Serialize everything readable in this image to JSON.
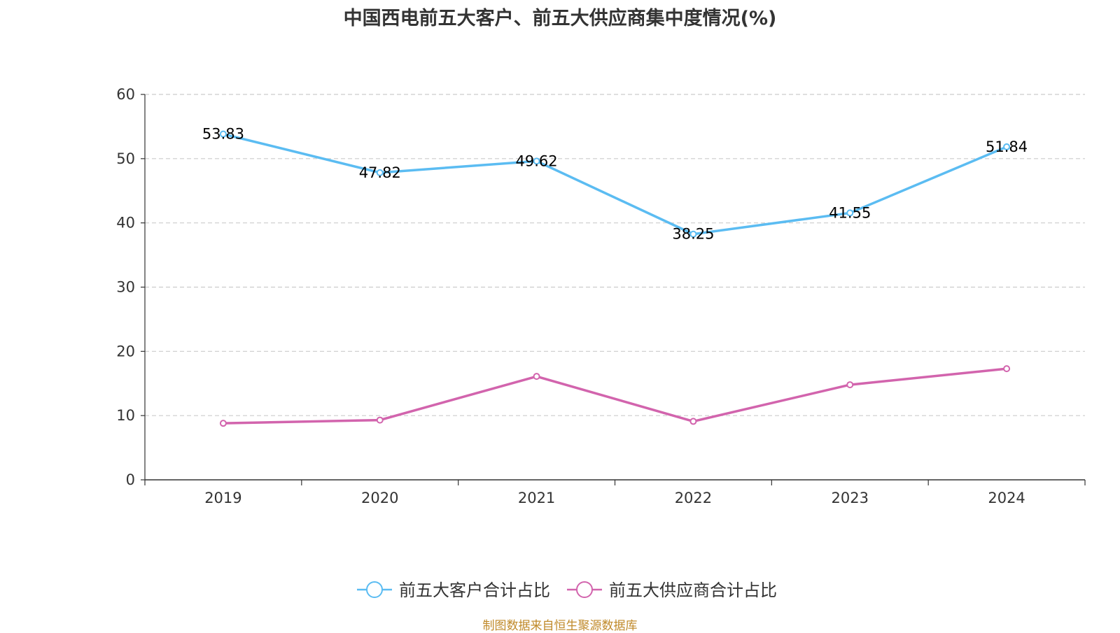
{
  "chart_data": {
    "type": "line",
    "title": "中国西电前五大客户、前五大供应商集中度情况(%)",
    "categories": [
      "2019",
      "2020",
      "2021",
      "2022",
      "2023",
      "2024"
    ],
    "ylim": [
      0,
      60
    ],
    "yticks": [
      0,
      10,
      20,
      30,
      40,
      50,
      60
    ],
    "grid": true,
    "legend_position": "bottom-center",
    "series": [
      {
        "name": "前五大客户合计占比",
        "color": "#5bbcf2",
        "values": [
          53.83,
          47.82,
          49.62,
          38.25,
          41.55,
          51.84
        ],
        "labels": [
          "53.83",
          "47.82",
          "49.62",
          "38.25",
          "41.55",
          "51.84"
        ],
        "show_labels": true
      },
      {
        "name": "前五大供应商合计占比",
        "color": "#d264ad",
        "values": [
          8.8,
          9.3,
          16.1,
          9.1,
          14.8,
          17.3
        ],
        "show_labels": false
      }
    ]
  },
  "source_note": "制图数据来自恒生聚源数据库"
}
